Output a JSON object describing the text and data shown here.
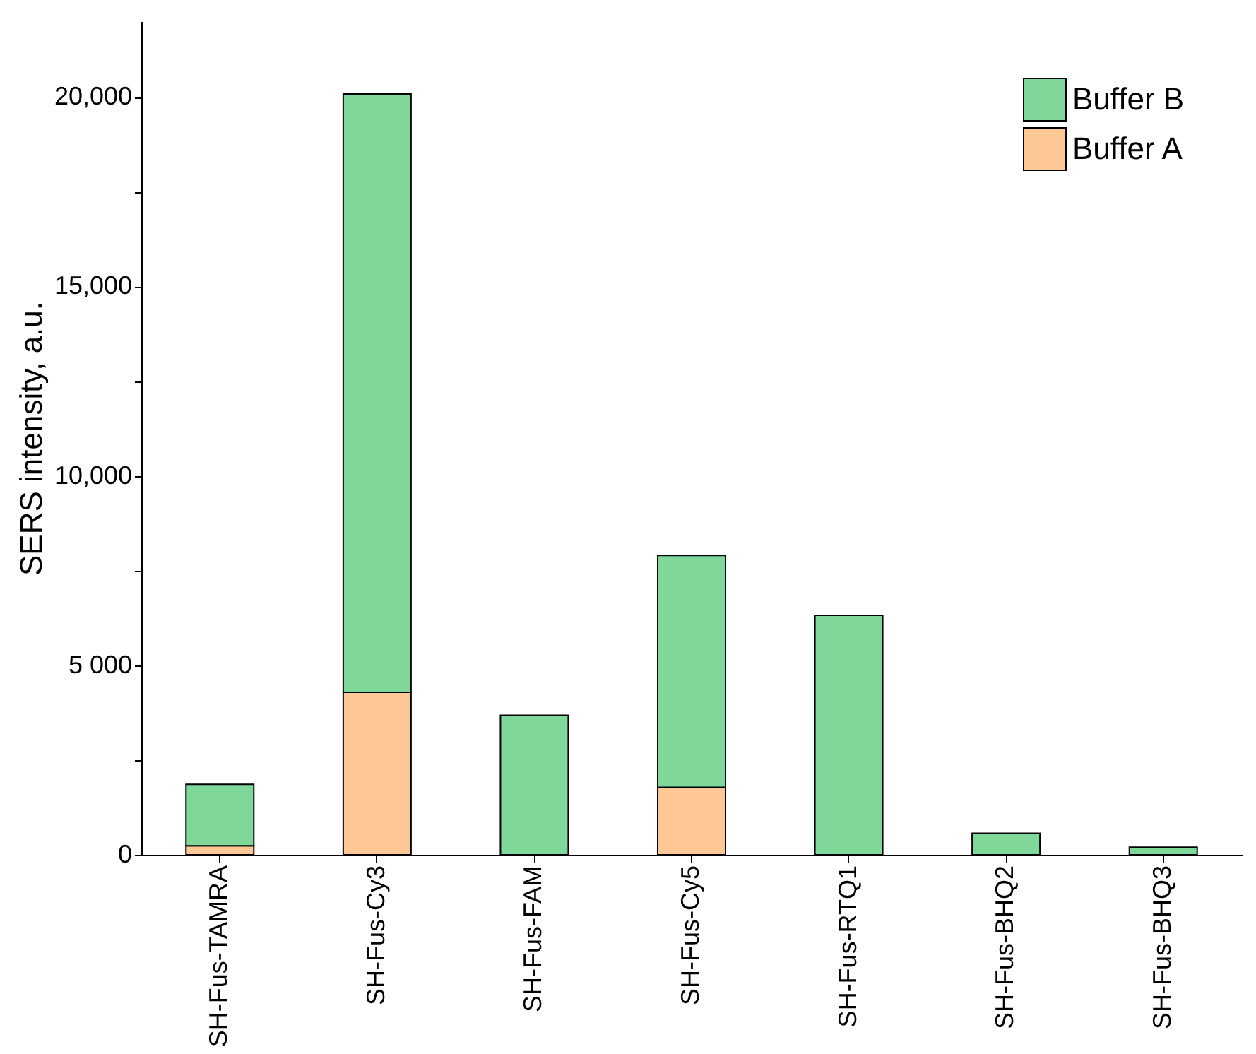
{
  "chart_data": {
    "type": "bar",
    "stacked": true,
    "ylabel": "SERS intensity, a.u.",
    "categories": [
      "SH-Fus-TAMRA",
      "SH-Fus-Cy3",
      "SH-Fus-FAM",
      "SH-Fus-Cy5",
      "SH-Fus-RTQ1",
      "SH-Fus-BHQ2",
      "SH-Fus-BHQ3"
    ],
    "series": [
      {
        "name": "Buffer A",
        "color": "#fdc896",
        "values": [
          240,
          4290,
          0,
          1780,
          0,
          0,
          0
        ]
      },
      {
        "name": "Buffer B",
        "color": "#7fd89a",
        "values": [
          1620,
          15790,
          3680,
          6120,
          6320,
          570,
          200
        ]
      }
    ],
    "ylim": [
      0,
      22000
    ],
    "yticks": [
      0,
      {
        "value": 2500,
        "label": null
      },
      {
        "value": 5000,
        "label": "5 000"
      },
      {
        "value": 7500,
        "label": null
      },
      {
        "value": 10000,
        "label": "10,000"
      },
      {
        "value": 12500,
        "label": null
      },
      {
        "value": 15000,
        "label": "15,000"
      },
      {
        "value": 17500,
        "label": null
      },
      {
        "value": 20000,
        "label": "20,000"
      }
    ],
    "grid": false,
    "legend": "top right"
  }
}
